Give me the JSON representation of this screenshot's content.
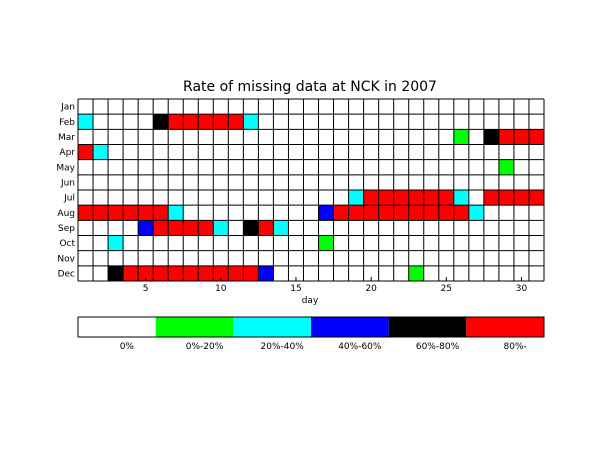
{
  "chart_data": {
    "type": "heatmap",
    "title": "Rate of missing data at NCK in 2007",
    "xlabel": "day",
    "ylabel": "",
    "x_ticks": [
      5,
      10,
      15,
      20,
      25,
      30
    ],
    "y_labels": [
      "Jan",
      "Feb",
      "Mar",
      "Apr",
      "May",
      "Jun",
      "Jul",
      "Aug",
      "Sep",
      "Oct",
      "Nov",
      "Dec"
    ],
    "days": 31,
    "categories": [
      {
        "label": "0%",
        "color": "#ffffff"
      },
      {
        "label": "0%-20%",
        "color": "#00ff00"
      },
      {
        "label": "20%-40%",
        "color": "#00ffff"
      },
      {
        "label": "40%-60%",
        "color": "#0000ff"
      },
      {
        "label": "60%-80%",
        "color": "#000000"
      },
      {
        "label": "80%-",
        "color": "#ff0000"
      }
    ],
    "cells": [
      [
        0,
        0,
        0,
        0,
        0,
        0,
        0,
        0,
        0,
        0,
        0,
        0,
        0,
        0,
        0,
        0,
        0,
        0,
        0,
        0,
        0,
        0,
        0,
        0,
        0,
        0,
        0,
        0,
        0,
        0,
        0
      ],
      [
        2,
        0,
        0,
        0,
        0,
        4,
        5,
        5,
        5,
        5,
        5,
        2,
        0,
        0,
        0,
        0,
        0,
        0,
        0,
        0,
        0,
        0,
        0,
        0,
        0,
        0,
        0,
        0,
        0,
        0,
        0
      ],
      [
        0,
        0,
        0,
        0,
        0,
        0,
        0,
        0,
        0,
        0,
        0,
        0,
        0,
        0,
        0,
        0,
        0,
        0,
        0,
        0,
        0,
        0,
        0,
        0,
        0,
        1,
        0,
        4,
        5,
        5,
        5
      ],
      [
        5,
        2,
        0,
        0,
        0,
        0,
        0,
        0,
        0,
        0,
        0,
        0,
        0,
        0,
        0,
        0,
        0,
        0,
        0,
        0,
        0,
        0,
        0,
        0,
        0,
        0,
        0,
        0,
        0,
        0,
        0
      ],
      [
        0,
        0,
        0,
        0,
        0,
        0,
        0,
        0,
        0,
        0,
        0,
        0,
        0,
        0,
        0,
        0,
        0,
        0,
        0,
        0,
        0,
        0,
        0,
        0,
        0,
        0,
        0,
        0,
        1,
        0,
        0
      ],
      [
        0,
        0,
        0,
        0,
        0,
        0,
        0,
        0,
        0,
        0,
        0,
        0,
        0,
        0,
        0,
        0,
        0,
        0,
        0,
        0,
        0,
        0,
        0,
        0,
        0,
        0,
        0,
        0,
        0,
        0,
        0
      ],
      [
        0,
        0,
        0,
        0,
        0,
        0,
        0,
        0,
        0,
        0,
        0,
        0,
        0,
        0,
        0,
        0,
        0,
        0,
        2,
        5,
        5,
        5,
        5,
        5,
        5,
        2,
        0,
        5,
        5,
        5,
        5
      ],
      [
        5,
        5,
        5,
        5,
        5,
        5,
        2,
        0,
        0,
        0,
        0,
        0,
        0,
        0,
        0,
        0,
        3,
        5,
        5,
        5,
        5,
        5,
        5,
        5,
        5,
        5,
        2,
        0,
        0,
        0,
        0
      ],
      [
        0,
        0,
        0,
        0,
        3,
        5,
        5,
        5,
        5,
        2,
        0,
        4,
        5,
        2,
        0,
        0,
        0,
        0,
        0,
        0,
        0,
        0,
        0,
        0,
        0,
        0,
        0,
        0,
        0,
        0,
        0
      ],
      [
        0,
        0,
        2,
        0,
        0,
        0,
        0,
        0,
        0,
        0,
        0,
        0,
        0,
        0,
        0,
        0,
        1,
        0,
        0,
        0,
        0,
        0,
        0,
        0,
        0,
        0,
        0,
        0,
        0,
        0,
        0
      ],
      [
        0,
        0,
        0,
        0,
        0,
        0,
        0,
        0,
        0,
        0,
        0,
        0,
        0,
        0,
        0,
        0,
        0,
        0,
        0,
        0,
        0,
        0,
        0,
        0,
        0,
        0,
        0,
        0,
        0,
        0,
        0
      ],
      [
        0,
        0,
        4,
        5,
        5,
        5,
        5,
        5,
        5,
        5,
        5,
        5,
        3,
        0,
        0,
        0,
        0,
        0,
        0,
        0,
        0,
        0,
        1,
        0,
        0,
        0,
        0,
        0,
        0,
        0,
        0
      ]
    ]
  }
}
